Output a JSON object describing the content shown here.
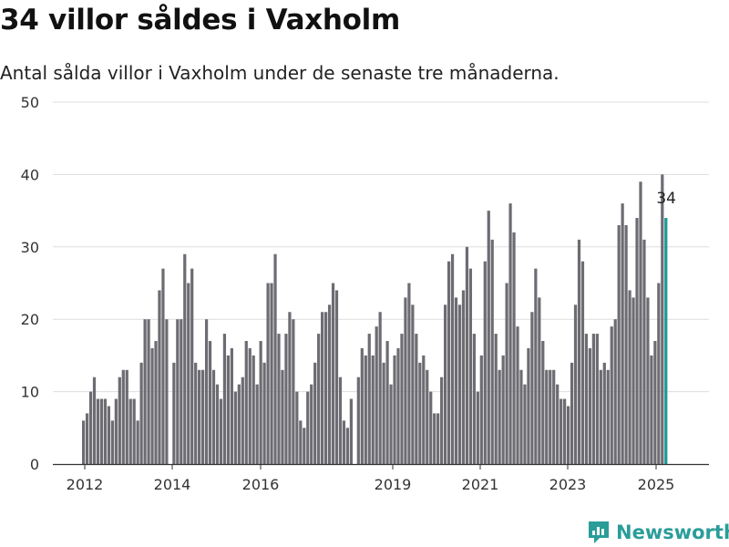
{
  "header": {
    "title": "34 villor såldes i Vaxholm",
    "subtitle": "Antal sålda villor i Vaxholm under de senaste tre månaderna."
  },
  "brand": {
    "name": "Newsworthy",
    "color": "#2a9d99"
  },
  "colors": {
    "bar": "#6d6c72",
    "highlight": "#1a9a96",
    "grid": "#dddddd"
  },
  "chart_data": {
    "type": "bar",
    "title": "34 villor såldes i Vaxholm",
    "subtitle": "Antal sålda villor i Vaxholm under de senaste tre månaderna.",
    "ylim": [
      0,
      50
    ],
    "yticks": [
      0,
      10,
      20,
      30,
      40,
      50
    ],
    "xtick_labels": [
      "2012",
      "2014",
      "2016",
      "2019",
      "2021",
      "2023",
      "2025"
    ],
    "grid": true,
    "highlight_label": "34",
    "values": [
      6,
      7,
      10,
      12,
      9,
      9,
      9,
      8,
      6,
      9,
      12,
      13,
      13,
      9,
      9,
      6,
      14,
      20,
      20,
      16,
      17,
      24,
      27,
      20,
      null,
      14,
      20,
      20,
      29,
      25,
      27,
      14,
      13,
      13,
      20,
      17,
      13,
      11,
      9,
      18,
      15,
      16,
      10,
      11,
      12,
      17,
      16,
      15,
      11,
      17,
      14,
      25,
      25,
      29,
      18,
      13,
      18,
      21,
      20,
      10,
      6,
      5,
      10,
      11,
      14,
      18,
      21,
      21,
      22,
      25,
      24,
      12,
      6,
      5,
      9,
      null,
      12,
      16,
      15,
      18,
      15,
      19,
      21,
      14,
      17,
      11,
      15,
      16,
      18,
      23,
      25,
      22,
      18,
      14,
      15,
      13,
      10,
      7,
      7,
      12,
      22,
      28,
      29,
      23,
      22,
      24,
      30,
      27,
      18,
      10,
      15,
      28,
      35,
      31,
      18,
      13,
      15,
      25,
      36,
      32,
      19,
      13,
      11,
      16,
      21,
      27,
      23,
      17,
      13,
      13,
      13,
      11,
      9,
      9,
      8,
      14,
      22,
      31,
      28,
      18,
      16,
      18,
      18,
      13,
      14,
      13,
      19,
      20,
      33,
      36,
      33,
      24,
      23,
      34,
      39,
      31,
      23,
      15,
      17,
      25,
      40,
      34
    ]
  }
}
